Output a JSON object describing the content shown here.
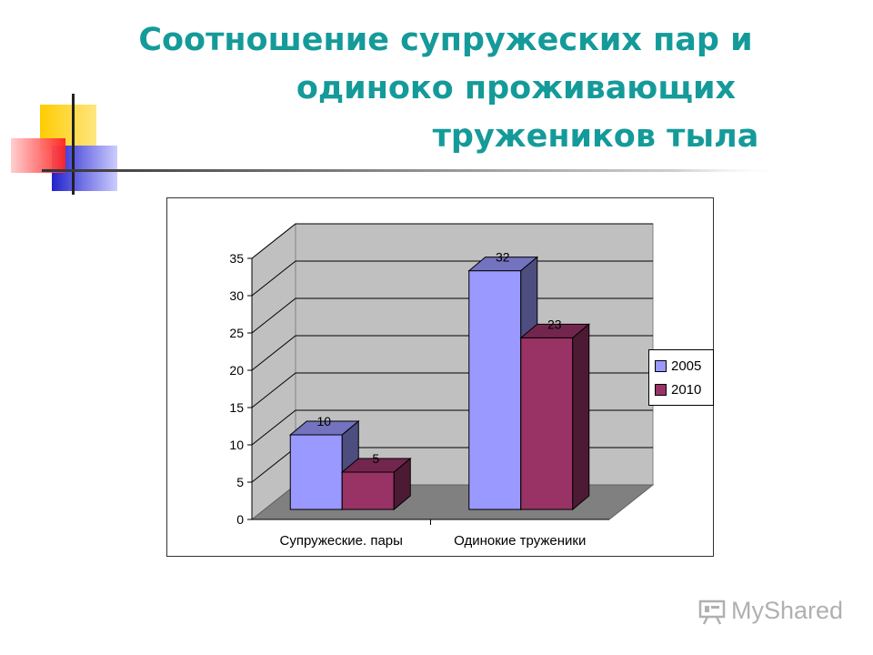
{
  "slide": {
    "title_line1": "Соотношение супружеских пар и",
    "title_line2": "одиноко проживающих",
    "title_line3": "тружеников тыла",
    "title_color": "#159a9a"
  },
  "watermark": {
    "text": "MyShared"
  },
  "chart_data": {
    "type": "bar",
    "style": "3d-clustered",
    "categories": [
      "Супружеские. пары",
      "Одинокие труженики"
    ],
    "series": [
      {
        "name": "2005",
        "values": [
          10,
          32
        ],
        "color": "#9999ff"
      },
      {
        "name": "2010",
        "values": [
          5,
          23
        ],
        "color": "#993366"
      }
    ],
    "ylim": [
      0,
      35
    ],
    "yticks": [
      0,
      5,
      10,
      15,
      20,
      25,
      30,
      35
    ],
    "grid": true,
    "legend_position": "right",
    "data_labels": true
  }
}
